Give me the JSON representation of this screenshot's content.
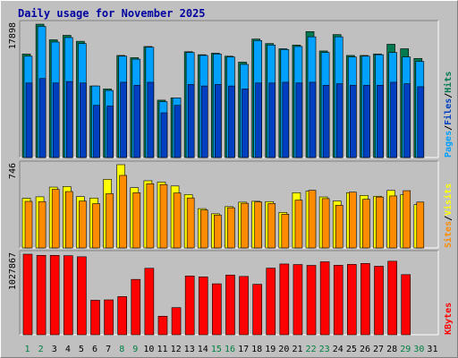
{
  "title": "Daily usage for November 2025",
  "colors": {
    "background": "#c0c0c0",
    "title": "#0000a0",
    "hits": "#007850",
    "files": "#00a0ff",
    "pages": "#0040c0",
    "visits": "#ffff00",
    "sites": "#ff8c00",
    "kbytes": "#ff0000",
    "weekend_label": "#008040",
    "weekday_label": "#000000"
  },
  "chart_data": [
    {
      "type": "bar",
      "name": "hits-files-pages",
      "ylabel_max": "17898",
      "legend": [
        "Pages",
        "/",
        "Files",
        "/",
        "Hits"
      ],
      "ylim": [
        0,
        17898
      ],
      "categories": [
        "1",
        "2",
        "3",
        "4",
        "5",
        "6",
        "7",
        "8",
        "9",
        "10",
        "11",
        "12",
        "13",
        "14",
        "15",
        "16",
        "17",
        "18",
        "19",
        "20",
        "21",
        "22",
        "23",
        "24",
        "25",
        "26",
        "27",
        "28",
        "29",
        "30",
        "31"
      ],
      "series": [
        {
          "name": "Hits",
          "values": [
            13900,
            17898,
            15800,
            16400,
            15600,
            9600,
            9200,
            13700,
            13400,
            14900,
            7700,
            8000,
            14200,
            13800,
            14000,
            13600,
            12800,
            15900,
            15300,
            14600,
            15100,
            16900,
            14300,
            16500,
            13700,
            13700,
            13900,
            15200,
            14600,
            13300,
            null
          ]
        },
        {
          "name": "Files",
          "values": [
            13600,
            17600,
            15500,
            16100,
            15300,
            9600,
            9000,
            13600,
            13200,
            14800,
            7500,
            8000,
            14100,
            13700,
            13900,
            13500,
            12500,
            15700,
            15100,
            14500,
            14900,
            16200,
            14100,
            16200,
            13500,
            13600,
            13800,
            14100,
            13500,
            12900,
            null
          ]
        },
        {
          "name": "Pages",
          "values": [
            10000,
            10600,
            10000,
            10200,
            10000,
            7000,
            6900,
            10100,
            9700,
            10100,
            6000,
            7000,
            9800,
            9600,
            9800,
            9600,
            9200,
            10000,
            10000,
            10100,
            10000,
            10100,
            9700,
            9900,
            9700,
            9700,
            9700,
            10100,
            9900,
            9500,
            null
          ]
        }
      ]
    },
    {
      "type": "bar",
      "name": "visits-sites",
      "ylabel_max": "746",
      "legend": [
        "Sites",
        "/",
        "Visits"
      ],
      "ylim": [
        0,
        746
      ],
      "categories": [
        "1",
        "2",
        "3",
        "4",
        "5",
        "6",
        "7",
        "8",
        "9",
        "10",
        "11",
        "12",
        "13",
        "14",
        "15",
        "16",
        "17",
        "18",
        "19",
        "20",
        "21",
        "22",
        "23",
        "24",
        "25",
        "26",
        "27",
        "28",
        "29",
        "30",
        "31"
      ],
      "series": [
        {
          "name": "Visits",
          "values": [
            445,
            458,
            545,
            550,
            460,
            447,
            615,
            746,
            540,
            602,
            590,
            555,
            478,
            352,
            306,
            370,
            410,
            418,
            415,
            318,
            495,
            508,
            457,
            421,
            495,
            470,
            463,
            515,
            477,
            388,
            null
          ]
        },
        {
          "name": "Sites",
          "values": [
            417,
            415,
            525,
            505,
            420,
            397,
            486,
            650,
            495,
            575,
            568,
            492,
            448,
            340,
            295,
            360,
            400,
            412,
            398,
            302,
            428,
            516,
            442,
            382,
            500,
            436,
            456,
            466,
            513,
            411,
            null
          ]
        }
      ]
    },
    {
      "type": "bar",
      "name": "kbytes",
      "ylabel_max": "1027867",
      "legend": [
        "KBytes"
      ],
      "ylim": [
        0,
        1027867
      ],
      "categories": [
        "1",
        "2",
        "3",
        "4",
        "5",
        "6",
        "7",
        "8",
        "9",
        "10",
        "11",
        "12",
        "13",
        "14",
        "15",
        "16",
        "17",
        "18",
        "19",
        "20",
        "21",
        "22",
        "23",
        "24",
        "25",
        "26",
        "27",
        "28",
        "29",
        "30",
        "31"
      ],
      "series": [
        {
          "name": "KBytes",
          "values": [
            1027867,
            1013000,
            1013000,
            1009000,
            995000,
            440000,
            445000,
            487000,
            706000,
            848000,
            236000,
            346000,
            750000,
            738000,
            650000,
            762000,
            744000,
            644000,
            850000,
            903000,
            896000,
            885000,
            931000,
            887000,
            898000,
            910000,
            874000,
            938000,
            767000,
            null,
            null
          ]
        }
      ]
    }
  ]
}
